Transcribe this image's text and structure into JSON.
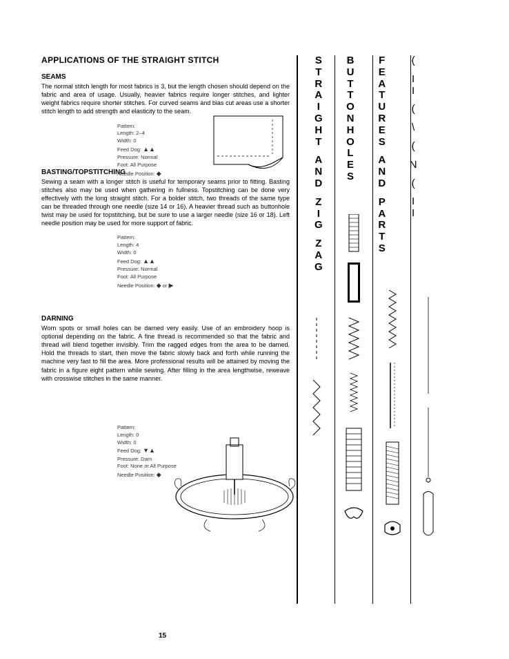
{
  "title": "APPLICATIONS OF THE STRAIGHT STITCH",
  "page_number": "15",
  "sections": {
    "seams": {
      "heading": "SEAMS",
      "body": "The normal stitch length for most fabrics is 3, but the length chosen should depend on the fabric and area of usage. Usually, heavier fabrics require longer stitches, and lighter weight fabrics require shorter stitches. For curved seams and bias cut areas use a shorter stitch length to add strength and elasticity to the seam.",
      "settings": {
        "pattern": "Pattern:",
        "length": "Length: 2–4",
        "width": "Width: 0",
        "feed_dog": "Feed Dog:",
        "pressure": "Pressure: Normal",
        "foot": "Foot: All Purpose",
        "needle_pos": "Needle Position:"
      }
    },
    "basting": {
      "heading": "BASTING/TOPSTITCHING",
      "body": "Sewing a seam with a longer stitch is useful for temporary seams prior to fitting. Basting stitches also may be used when gathering in fullness. Topstitching can be done very effectively with the long straight stitch. For a bolder stitch, two threads of the same type can be threaded through one needle (size 14 or 16). A heavier thread such as buttonhole twist may be used for topstitching, but be sure to use a larger needle (size 16 or 18). Left needle position may be used for more support of fabric.",
      "settings": {
        "pattern": "Pattern:",
        "length": "Length: 4",
        "width": "Width: 0",
        "feed_dog": "Feed Dog:",
        "pressure": "Pressure: Normal",
        "foot": "Foot: All Purpose",
        "needle_pos": "Needle Position:"
      }
    },
    "darning": {
      "heading": "DARNING",
      "body": "Worn spots or small holes can be darned very easily. Use of an embroidery hoop is optional depending on the fabric. A fine thread is recommended so that the fabric and thread will blend together invisibly. Trim the ragged edges from the area to be darned. Hold the threads to start, then move the fabric slowly back and forth while running the machine very fast to fill the area. More professional results will be attained by moving the fabric in a figure eight pattern while sewing. After filling in the area lengthwise, reweave with crosswise stitches in the same manner.",
      "settings": {
        "pattern": "Pattern:",
        "length": "Length: 0",
        "width": "Width: 0",
        "feed_dog": "Feed Dog:",
        "pressure": "Pressure: Darn",
        "foot": "Foot: None or All Purpose",
        "needle_pos": "Needle Position:"
      }
    }
  },
  "tabs": {
    "col1": [
      "S",
      "T",
      "R",
      "A",
      "I",
      "G",
      "H",
      "T",
      "",
      "A",
      "N",
      "D",
      "",
      "Z",
      "I",
      "G",
      "",
      "Z",
      "A",
      "G"
    ],
    "col2": [
      "B",
      "U",
      "T",
      "T",
      "O",
      "N",
      "H",
      "O",
      "L",
      "E",
      "S"
    ],
    "col3": [
      "F",
      "E",
      "A",
      "T",
      "U",
      "R",
      "E",
      "S",
      "",
      "A",
      "N",
      "D",
      "",
      "P",
      "A",
      "R",
      "T",
      "S"
    ],
    "col4": [
      "(",
      "",
      "I",
      "I",
      "",
      "(",
      "",
      "\\",
      "",
      "(",
      "",
      "N",
      "",
      "(",
      "",
      "I",
      "I"
    ]
  },
  "colors": {
    "text": "#000000",
    "bg": "#ffffff",
    "rule": "#000000",
    "settings_text": "#333333"
  },
  "fonts": {
    "body_pt": 9,
    "h1_pt": 12,
    "h2_pt": 10,
    "tab_pt": 15,
    "settings_pt": 7.5
  }
}
